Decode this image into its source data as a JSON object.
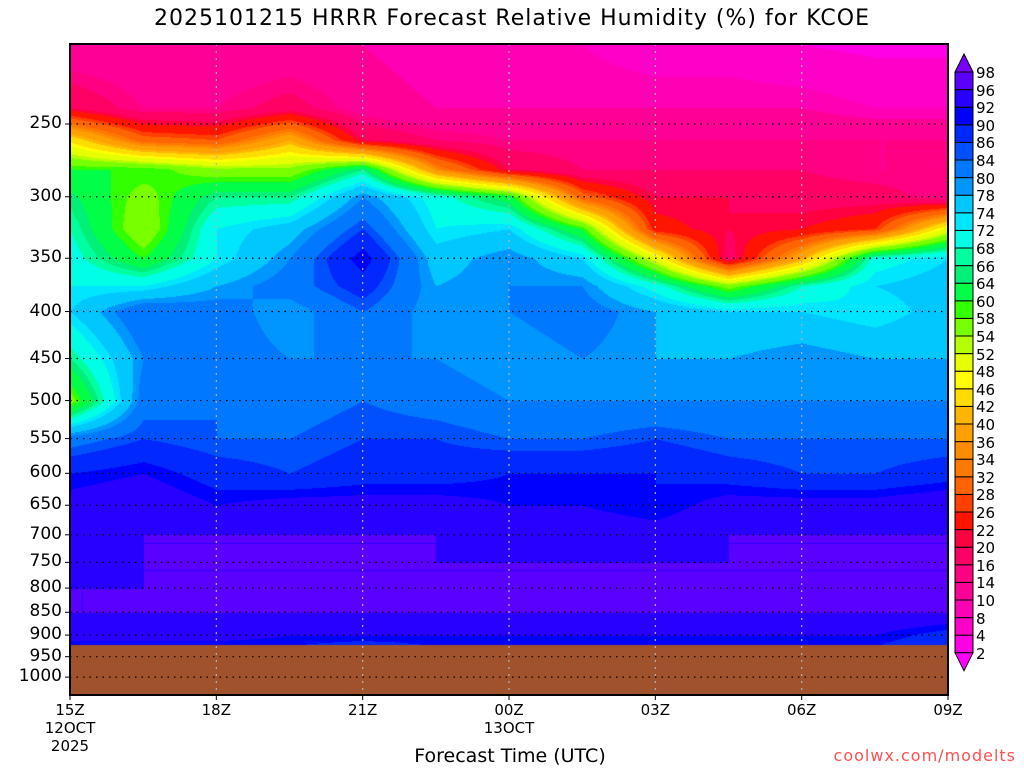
{
  "title": "2025101215 HRRR Forecast Relative Humidity (%) for KCOE",
  "credit": "coolwx.com/modelts",
  "chart_data": {
    "type": "heatmap",
    "title": "2025101215 HRRR Forecast Relative Humidity (%) for KCOE",
    "xlabel": "Forecast Time (UTC)",
    "ylabel": "",
    "x_ticks": [
      {
        "hour": 0,
        "label": "15Z",
        "sub": "12OCT",
        "sub2": "2025"
      },
      {
        "hour": 3,
        "label": "18Z"
      },
      {
        "hour": 6,
        "label": "21Z"
      },
      {
        "hour": 9,
        "label": "00Z",
        "sub": "13OCT"
      },
      {
        "hour": 12,
        "label": "03Z"
      },
      {
        "hour": 15,
        "label": "06Z"
      },
      {
        "hour": 18,
        "label": "09Z"
      }
    ],
    "xlim_hours": [
      0,
      18
    ],
    "y_ticks": [
      "250",
      "300",
      "350",
      "400",
      "450",
      "500",
      "550",
      "600",
      "650",
      "700",
      "750",
      "800",
      "850",
      "900",
      "950",
      "1000"
    ],
    "ylim_hpa": [
      205,
      1046
    ],
    "y_scale": "log",
    "grid": true,
    "surface_pressure_hpa": 922,
    "ground_color": "#a0522d",
    "hours": [
      0,
      1.5,
      3,
      4.5,
      6,
      7.5,
      9,
      10.5,
      12,
      13.5,
      15,
      16.5,
      18
    ],
    "pressures": [
      205,
      240,
      260,
      280,
      300,
      325,
      350,
      375,
      400,
      450,
      500,
      550,
      600,
      650,
      700,
      750,
      800,
      850,
      900,
      925
    ],
    "rh": [
      [
        10,
        10,
        10,
        10,
        10,
        8,
        8,
        8,
        6,
        6,
        4,
        3,
        3
      ],
      [
        20,
        14,
        14,
        18,
        12,
        10,
        10,
        10,
        10,
        10,
        10,
        8,
        8
      ],
      [
        45,
        30,
        28,
        40,
        20,
        16,
        14,
        14,
        14,
        14,
        14,
        14,
        14
      ],
      [
        60,
        60,
        55,
        55,
        66,
        35,
        20,
        16,
        16,
        16,
        16,
        14,
        14
      ],
      [
        65,
        56,
        66,
        66,
        80,
        70,
        62,
        30,
        20,
        20,
        18,
        18,
        14
      ],
      [
        68,
        54,
        72,
        76,
        86,
        72,
        74,
        60,
        24,
        20,
        22,
        26,
        50
      ],
      [
        70,
        60,
        72,
        80,
        92,
        76,
        80,
        74,
        50,
        18,
        40,
        70,
        74
      ],
      [
        72,
        72,
        78,
        82,
        88,
        78,
        80,
        80,
        70,
        56,
        68,
        74,
        76
      ],
      [
        74,
        84,
        82,
        78,
        84,
        78,
        80,
        82,
        78,
        74,
        74,
        72,
        76
      ],
      [
        66,
        80,
        82,
        80,
        80,
        80,
        78,
        80,
        78,
        78,
        80,
        78,
        78
      ],
      [
        56,
        82,
        84,
        82,
        84,
        82,
        80,
        80,
        80,
        80,
        80,
        80,
        80
      ],
      [
        82,
        86,
        84,
        84,
        86,
        86,
        84,
        84,
        86,
        84,
        84,
        84,
        84
      ],
      [
        90,
        92,
        88,
        86,
        88,
        88,
        90,
        90,
        90,
        88,
        86,
        86,
        88
      ],
      [
        94,
        96,
        92,
        94,
        94,
        94,
        92,
        92,
        90,
        94,
        94,
        94,
        96
      ],
      [
        96,
        96,
        96,
        96,
        96,
        96,
        95,
        95,
        94,
        96,
        96,
        96,
        96
      ],
      [
        94,
        96,
        96,
        96,
        96,
        96,
        96,
        96,
        96,
        96,
        96,
        96,
        96
      ],
      [
        96,
        96,
        96,
        96,
        96,
        96,
        96,
        96,
        96,
        96,
        96,
        96,
        96
      ],
      [
        96,
        96,
        96,
        96,
        96,
        96,
        96,
        96,
        96,
        96,
        96,
        96,
        96
      ],
      [
        94,
        94,
        94,
        92,
        92,
        92,
        92,
        92,
        92,
        92,
        92,
        92,
        88
      ],
      [
        90,
        90,
        90,
        90,
        88,
        90,
        90,
        90,
        90,
        90,
        90,
        90,
        86
      ]
    ],
    "colorbar": {
      "levels": [
        2,
        4,
        8,
        10,
        14,
        16,
        20,
        22,
        26,
        28,
        32,
        34,
        36,
        40,
        42,
        46,
        48,
        52,
        54,
        58,
        60,
        64,
        66,
        68,
        72,
        74,
        78,
        80,
        84,
        86,
        90,
        92,
        96,
        98
      ],
      "labels": [
        "2",
        "4",
        "8",
        "10",
        "14",
        "16",
        "20",
        "22",
        "26",
        "28",
        "32",
        "34",
        "36",
        "40",
        "42",
        "46",
        "48",
        "52",
        "54",
        "58",
        "60",
        "64",
        "66",
        "68",
        "72",
        "74",
        "78",
        "80",
        "84",
        "86",
        "90",
        "92",
        "96",
        "98"
      ],
      "colors": [
        "#ff00ff",
        "#ff00e6",
        "#ff00c8",
        "#ff00b4",
        "#ff0096",
        "#ff0082",
        "#ff0064",
        "#ff0040",
        "#ff1400",
        "#ff4000",
        "#ff6400",
        "#ff7800",
        "#ff8c00",
        "#ffa000",
        "#ffb400",
        "#ffdc00",
        "#ffff00",
        "#e6ff00",
        "#b4ff00",
        "#78ff00",
        "#32ff00",
        "#00ff46",
        "#00f078",
        "#00ffa0",
        "#00ffe6",
        "#00e6ff",
        "#00c8ff",
        "#0096ff",
        "#0078ff",
        "#0050ff",
        "#0028ff",
        "#0000ff",
        "#2800ff",
        "#5a00ff",
        "#7800ff"
      ]
    }
  }
}
